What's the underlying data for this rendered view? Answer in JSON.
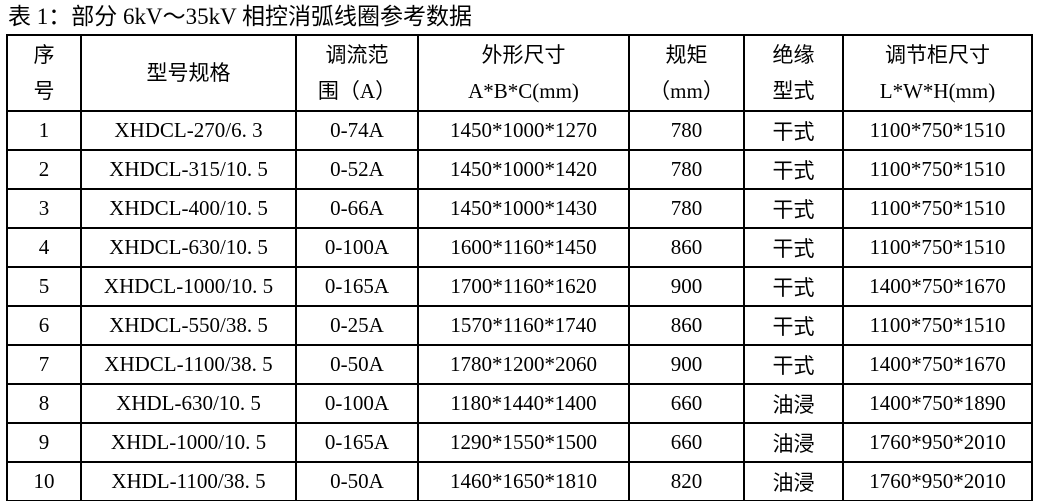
{
  "title": "表 1：部分 6kV～35kV 相控消弧线圈参考数据",
  "columns": [
    {
      "id": "index",
      "label_lines": [
        "序",
        "号"
      ]
    },
    {
      "id": "model",
      "label_lines": [
        "型号规格"
      ]
    },
    {
      "id": "current_range",
      "label_lines": [
        "调流范",
        "围（A）"
      ]
    },
    {
      "id": "dimensions",
      "label_lines": [
        "外形尺寸",
        "A*B*C(mm)"
      ]
    },
    {
      "id": "gauge",
      "label_lines": [
        "规矩",
        "（mm）"
      ]
    },
    {
      "id": "insulation",
      "label_lines": [
        "绝缘",
        "型式"
      ]
    },
    {
      "id": "cabinet",
      "label_lines": [
        "调节柜尺寸",
        "L*W*H(mm)"
      ]
    }
  ],
  "rows": [
    [
      "1",
      "XHDCL-270/6. 3",
      "0-74A",
      "1450*1000*1270",
      "780",
      "干式",
      "1100*750*1510"
    ],
    [
      "2",
      "XHDCL-315/10. 5",
      "0-52A",
      "1450*1000*1420",
      "780",
      "干式",
      "1100*750*1510"
    ],
    [
      "3",
      "XHDCL-400/10. 5",
      "0-66A",
      "1450*1000*1430",
      "780",
      "干式",
      "1100*750*1510"
    ],
    [
      "4",
      "XHDCL-630/10. 5",
      "0-100A",
      "1600*1160*1450",
      "860",
      "干式",
      "1100*750*1510"
    ],
    [
      "5",
      "XHDCL-1000/10. 5",
      "0-165A",
      "1700*1160*1620",
      "900",
      "干式",
      "1400*750*1670"
    ],
    [
      "6",
      "XHDCL-550/38. 5",
      "0-25A",
      "1570*1160*1740",
      "860",
      "干式",
      "1100*750*1510"
    ],
    [
      "7",
      "XHDCL-1100/38. 5",
      "0-50A",
      "1780*1200*2060",
      "900",
      "干式",
      "1400*750*1670"
    ],
    [
      "8",
      "XHDL-630/10. 5",
      "0-100A",
      "1180*1440*1400",
      "660",
      "油浸",
      "1400*750*1890"
    ],
    [
      "9",
      "XHDL-1000/10. 5",
      "0-165A",
      "1290*1550*1500",
      "660",
      "油浸",
      "1760*950*2010"
    ],
    [
      "10",
      "XHDL-1100/38. 5",
      "0-50A",
      "1460*1650*1810",
      "820",
      "油浸",
      "1760*950*2010"
    ]
  ],
  "colors": {
    "text": "#000000",
    "border": "#000000",
    "background": "#ffffff"
  }
}
